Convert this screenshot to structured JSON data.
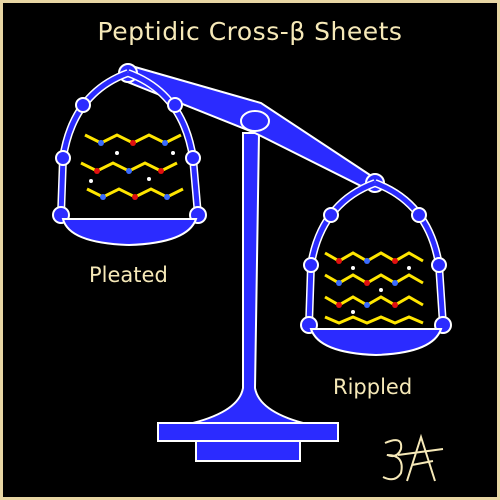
{
  "title": "Peptidic Cross-β Sheets",
  "pans": {
    "left": {
      "label": "Pleated"
    },
    "right": {
      "label": "Rippled"
    }
  },
  "signature": "ƷA",
  "colors": {
    "background": "#000000",
    "border": "#e8d6a4",
    "scale": "#2b2bff",
    "scale_outline": "#ffffff",
    "text": "#f6e9b8",
    "atom_carbon": "#ffe600",
    "atom_nitrogen": "#3a6bff",
    "atom_oxygen": "#e01010",
    "atom_hydrogen": "#ffffff"
  }
}
